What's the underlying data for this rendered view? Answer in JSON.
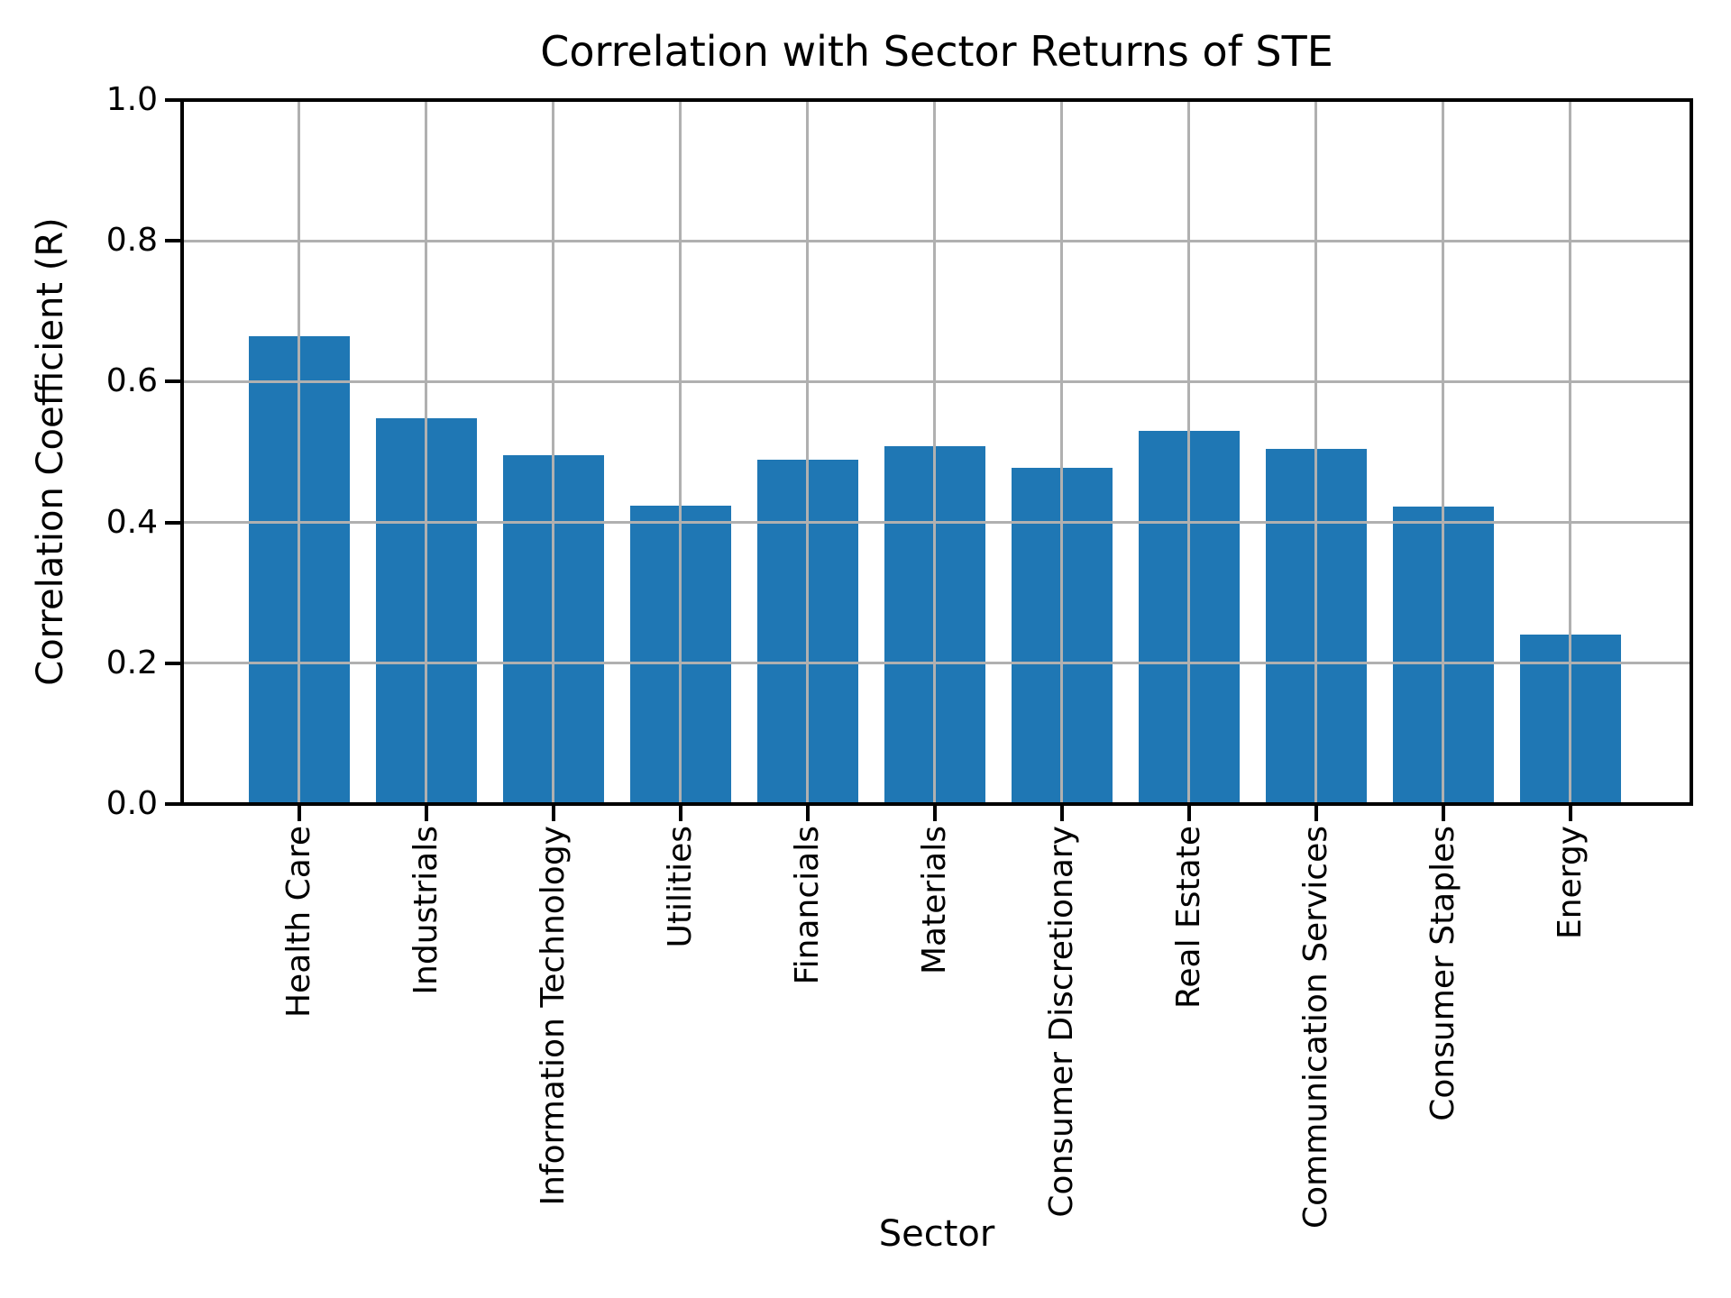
{
  "figure": {
    "title": "Correlation with Sector Returns of STE",
    "xlabel": "Sector",
    "ylabel": "Correlation Coefficient (R)"
  },
  "chart_data": {
    "type": "bar",
    "title": "Correlation with Sector Returns of STE",
    "xlabel": "Sector",
    "ylabel": "Correlation Coefficient (R)",
    "categories": [
      "Health Care",
      "Industrials",
      "Information Technology",
      "Utilities",
      "Financials",
      "Materials",
      "Consumer Discretionary",
      "Real Estate",
      "Communication Services",
      "Consumer Staples",
      "Energy"
    ],
    "values": [
      0.665,
      0.548,
      0.495,
      0.424,
      0.489,
      0.508,
      0.477,
      0.53,
      0.504,
      0.423,
      0.241
    ],
    "ylim": [
      0.0,
      1.0
    ],
    "yticks": [
      0.0,
      0.2,
      0.4,
      0.6,
      0.8,
      1.0
    ],
    "ytick_labels": [
      "0.0",
      "0.2",
      "0.4",
      "0.6",
      "0.8",
      "1.0"
    ],
    "grid": true,
    "legend": false,
    "bar_color": "#1f77b4",
    "grid_color": "#b0b0b0",
    "spine_color": "#000000",
    "background_color": "#ffffff"
  }
}
